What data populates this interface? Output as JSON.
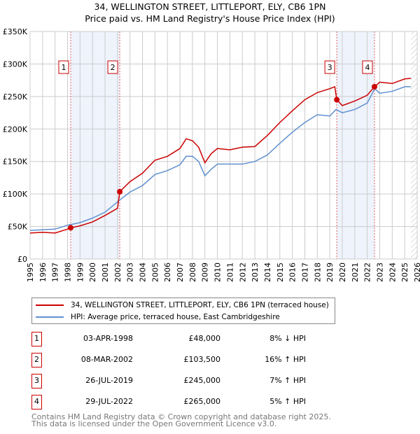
{
  "title": "34, WELLINGTON STREET, LITTLEPORT, ELY, CB6 1PN",
  "subtitle": "Price paid vs. HM Land Registry's House Price Index (HPI)",
  "chart_data": {
    "type": "line",
    "title": "34, WELLINGTON STREET, LITTLEPORT, ELY, CB6 1PN",
    "subtitle": "Price paid vs. HM Land Registry's House Price Index (HPI)",
    "xlim": [
      1995,
      2026
    ],
    "ylim": [
      0,
      350000
    ],
    "xticks": [
      "1995",
      "1996",
      "1997",
      "1998",
      "1999",
      "2000",
      "2001",
      "2002",
      "2003",
      "2004",
      "2005",
      "2006",
      "2007",
      "2008",
      "2009",
      "2010",
      "2011",
      "2012",
      "2013",
      "2014",
      "2015",
      "2016",
      "2017",
      "2018",
      "2019",
      "2020",
      "2021",
      "2022",
      "2023",
      "2024",
      "2025",
      "2026"
    ],
    "yticks": [
      {
        "v": 0,
        "label": "£0"
      },
      {
        "v": 50000,
        "label": "£50K"
      },
      {
        "v": 100000,
        "label": "£100K"
      },
      {
        "v": 150000,
        "label": "£150K"
      },
      {
        "v": 200000,
        "label": "£200K"
      },
      {
        "v": 250000,
        "label": "£250K"
      },
      {
        "v": 300000,
        "label": "£300K"
      },
      {
        "v": 350000,
        "label": "£350K"
      }
    ],
    "grid": true,
    "series": [
      {
        "name": "34, WELLINGTON STREET, LITTLEPORT, ELY, CB6 1PN (terraced house)",
        "color": "#cc0000",
        "x": [
          1995,
          1996,
          1997,
          1998,
          1998.25,
          1999,
          2000,
          2001,
          2002,
          2002.18,
          2003,
          2004,
          2005,
          2006,
          2007,
          2007.5,
          2008,
          2008.5,
          2009,
          2009.5,
          2010,
          2011,
          2012,
          2013,
          2014,
          2015,
          2016,
          2017,
          2018,
          2019,
          2019.4,
          2019.56,
          2020,
          2021,
          2022,
          2022.58,
          2023,
          2024,
          2025,
          2025.5
        ],
        "y": [
          40000,
          41000,
          40000,
          46000,
          48000,
          51000,
          57000,
          67000,
          78000,
          103500,
          119000,
          132000,
          152000,
          158000,
          170000,
          185000,
          182000,
          172000,
          148000,
          162000,
          170000,
          168000,
          172000,
          173000,
          190000,
          210000,
          228000,
          245000,
          256000,
          262000,
          265000,
          245000,
          236000,
          243000,
          252000,
          265000,
          272000,
          270000,
          277000,
          278000
        ]
      },
      {
        "name": "HPI: Average price, terraced house, East Cambridgeshire",
        "color": "#6090d0",
        "x": [
          1995,
          1996,
          1997,
          1998,
          1999,
          2000,
          2001,
          2002,
          2003,
          2004,
          2005,
          2006,
          2007,
          2007.5,
          2008,
          2008.5,
          2009,
          2009.5,
          2010,
          2011,
          2012,
          2013,
          2014,
          2015,
          2016,
          2017,
          2018,
          2019,
          2019.5,
          2020,
          2021,
          2022,
          2022.6,
          2023,
          2024,
          2025,
          2025.5
        ],
        "y": [
          44000,
          45000,
          46000,
          52000,
          56000,
          63000,
          72000,
          88000,
          103000,
          113000,
          130000,
          136000,
          145000,
          158000,
          158000,
          150000,
          128000,
          138000,
          146000,
          146000,
          146000,
          150000,
          160000,
          178000,
          195000,
          210000,
          222000,
          220000,
          230000,
          225000,
          230000,
          240000,
          262000,
          255000,
          258000,
          265000,
          265000
        ]
      }
    ],
    "sales": [
      {
        "n": "1",
        "date": "03-APR-1998",
        "x": 1998.25,
        "price": "£48,000",
        "value": 48000,
        "hpi": "8% ↓ HPI"
      },
      {
        "n": "2",
        "date": "08-MAR-2002",
        "x": 2002.18,
        "price": "£103,500",
        "value": 103500,
        "hpi": "16% ↑ HPI"
      },
      {
        "n": "3",
        "date": "26-JUL-2019",
        "x": 2019.56,
        "price": "£245,000",
        "value": 245000,
        "hpi": "7% ↑ HPI"
      },
      {
        "n": "4",
        "date": "29-JUL-2022",
        "x": 2022.58,
        "price": "£265,000",
        "value": 265000,
        "hpi": "5% ↑ HPI"
      }
    ],
    "shaded": [
      [
        1998.25,
        2002.18
      ],
      [
        2019.56,
        2022.58
      ]
    ],
    "forecast_from": 2025.5
  },
  "legend": {
    "red": "34, WELLINGTON STREET, LITTLEPORT, ELY, CB6 1PN (terraced house)",
    "blue": "HPI: Average price, terraced house, East Cambridgeshire"
  },
  "footer": {
    "line1": "Contains HM Land Registry data © Crown copyright and database right 2025.",
    "line2": "This data is licensed under the Open Government Licence v3.0."
  }
}
